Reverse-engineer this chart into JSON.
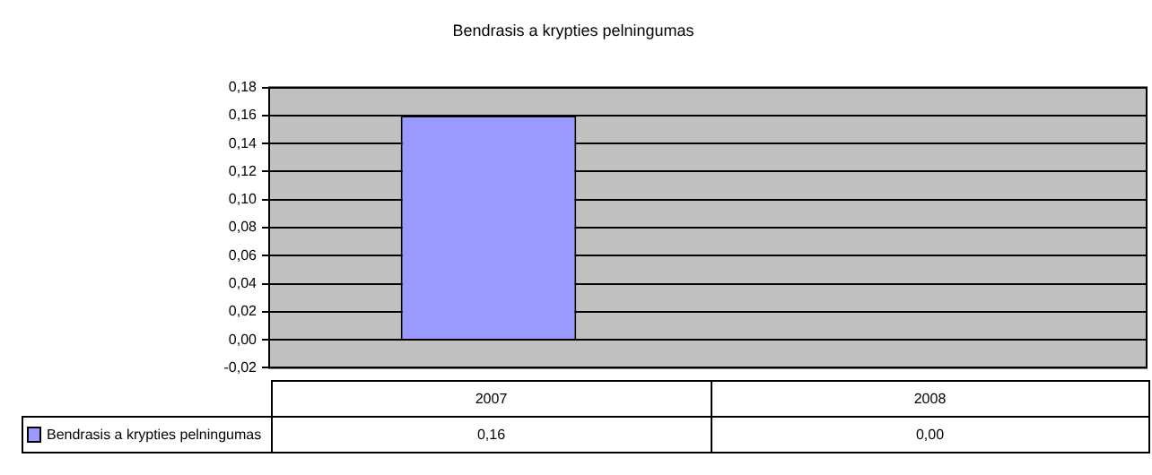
{
  "chart_data": {
    "type": "bar",
    "title": "Bendrasis a krypties pelningumas",
    "categories": [
      "2007",
      "2008"
    ],
    "series": [
      {
        "name": "Bendrasis a krypties pelningumas",
        "color": "#9999ff",
        "values": [
          0.16,
          0
        ]
      }
    ],
    "value_labels": [
      "0,16",
      "0,00"
    ],
    "ylim": [
      -0.02,
      0.18
    ],
    "yticks": [
      {
        "value": -0.02,
        "label": "-0,02"
      },
      {
        "value": 0,
        "label": "0,00"
      },
      {
        "value": 0.02,
        "label": "0,02"
      },
      {
        "value": 0.04,
        "label": "0,04"
      },
      {
        "value": 0.06,
        "label": "0,06"
      },
      {
        "value": 0.08,
        "label": "0,08"
      },
      {
        "value": 0.1,
        "label": "0,10"
      },
      {
        "value": 0.12,
        "label": "0,12"
      },
      {
        "value": 0.14,
        "label": "0,14"
      },
      {
        "value": 0.16,
        "label": "0,16"
      },
      {
        "value": 0.18,
        "label": "0,18"
      }
    ],
    "grid": true,
    "legend": "bottom"
  }
}
